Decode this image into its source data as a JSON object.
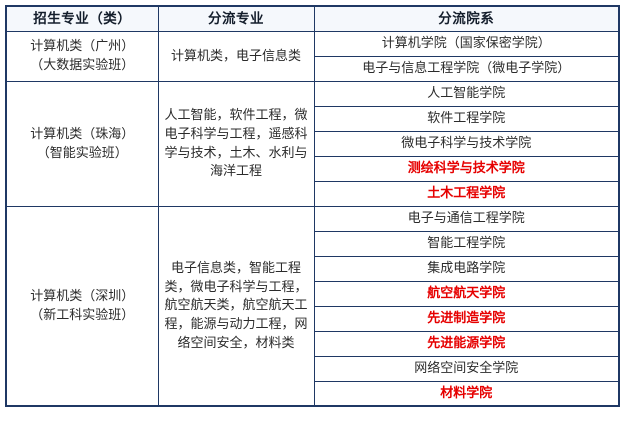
{
  "colors": {
    "border": "#1f3864",
    "header_text": "#131d2b",
    "body_text": "#2b2b2b",
    "highlight_red": "#e60000",
    "header_bg": "#f5f8fc"
  },
  "table": {
    "headers": [
      "招生专业（类）",
      "分流专业",
      "分流院系"
    ],
    "sections": [
      {
        "major": "计算机类（广州）\n（大数据实验班）",
        "streams": "计算机类，电子信息类",
        "colleges": [
          {
            "name": "计算机学院（国家保密学院）",
            "highlight": false
          },
          {
            "name": "电子与信息工程学院（微电子学院）",
            "highlight": false
          }
        ]
      },
      {
        "major": "计算机类（珠海）\n（智能实验班）",
        "streams": "人工智能，软件工程，微电子科学与工程，遥感科学与技术，土木、水利与海洋工程",
        "colleges": [
          {
            "name": "人工智能学院",
            "highlight": false
          },
          {
            "name": "软件工程学院",
            "highlight": false
          },
          {
            "name": "微电子科学与技术学院",
            "highlight": false
          },
          {
            "name": "测绘科学与技术学院",
            "highlight": true
          },
          {
            "name": "土木工程学院",
            "highlight": true
          }
        ]
      },
      {
        "major": "计算机类（深圳）\n（新工科实验班）",
        "streams": "电子信息类，智能工程类，微电子科学与工程，航空航天类，航空航天工程，能源与动力工程，网络空间安全，材料类",
        "colleges": [
          {
            "name": "电子与通信工程学院",
            "highlight": false
          },
          {
            "name": "智能工程学院",
            "highlight": false
          },
          {
            "name": "集成电路学院",
            "highlight": false
          },
          {
            "name": "航空航天学院",
            "highlight": true
          },
          {
            "name": "先进制造学院",
            "highlight": true
          },
          {
            "name": "先进能源学院",
            "highlight": true
          },
          {
            "name": "网络空间安全学院",
            "highlight": false
          },
          {
            "name": "材料学院",
            "highlight": true
          }
        ]
      }
    ]
  }
}
